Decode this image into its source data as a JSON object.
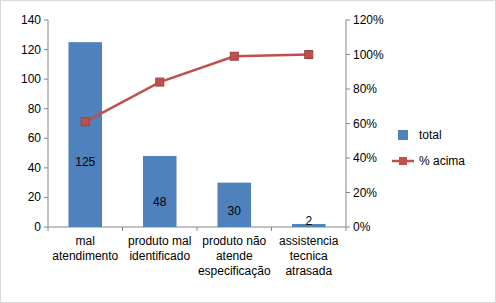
{
  "chart_data": {
    "type": "bar",
    "categories": [
      "mal atendimento",
      "produto mal identificado",
      "produto não atende especificação",
      "assistencia tecnica atrasada"
    ],
    "series": [
      {
        "name": "total",
        "type": "bar",
        "color": "#4f81bd",
        "values": [
          125,
          48,
          30,
          2
        ]
      },
      {
        "name": "% acima",
        "type": "line",
        "color": "#c0504d",
        "marker": "square",
        "axis": "y2",
        "values": [
          61,
          84,
          99,
          100
        ]
      }
    ],
    "ylim": [
      0,
      140
    ],
    "yticks": [
      0,
      20,
      40,
      60,
      80,
      100,
      120,
      140
    ],
    "y2lim": [
      0,
      120
    ],
    "y2ticks": [
      {
        "value": 0,
        "label": "0%"
      },
      {
        "value": 20,
        "label": "20%"
      },
      {
        "value": 40,
        "label": "40%"
      },
      {
        "value": 60,
        "label": "60%"
      },
      {
        "value": 80,
        "label": "80%"
      },
      {
        "value": 100,
        "label": "100%"
      },
      {
        "value": 120,
        "label": "120%"
      }
    ],
    "grid": false,
    "data_labels": true,
    "legend": "right"
  }
}
